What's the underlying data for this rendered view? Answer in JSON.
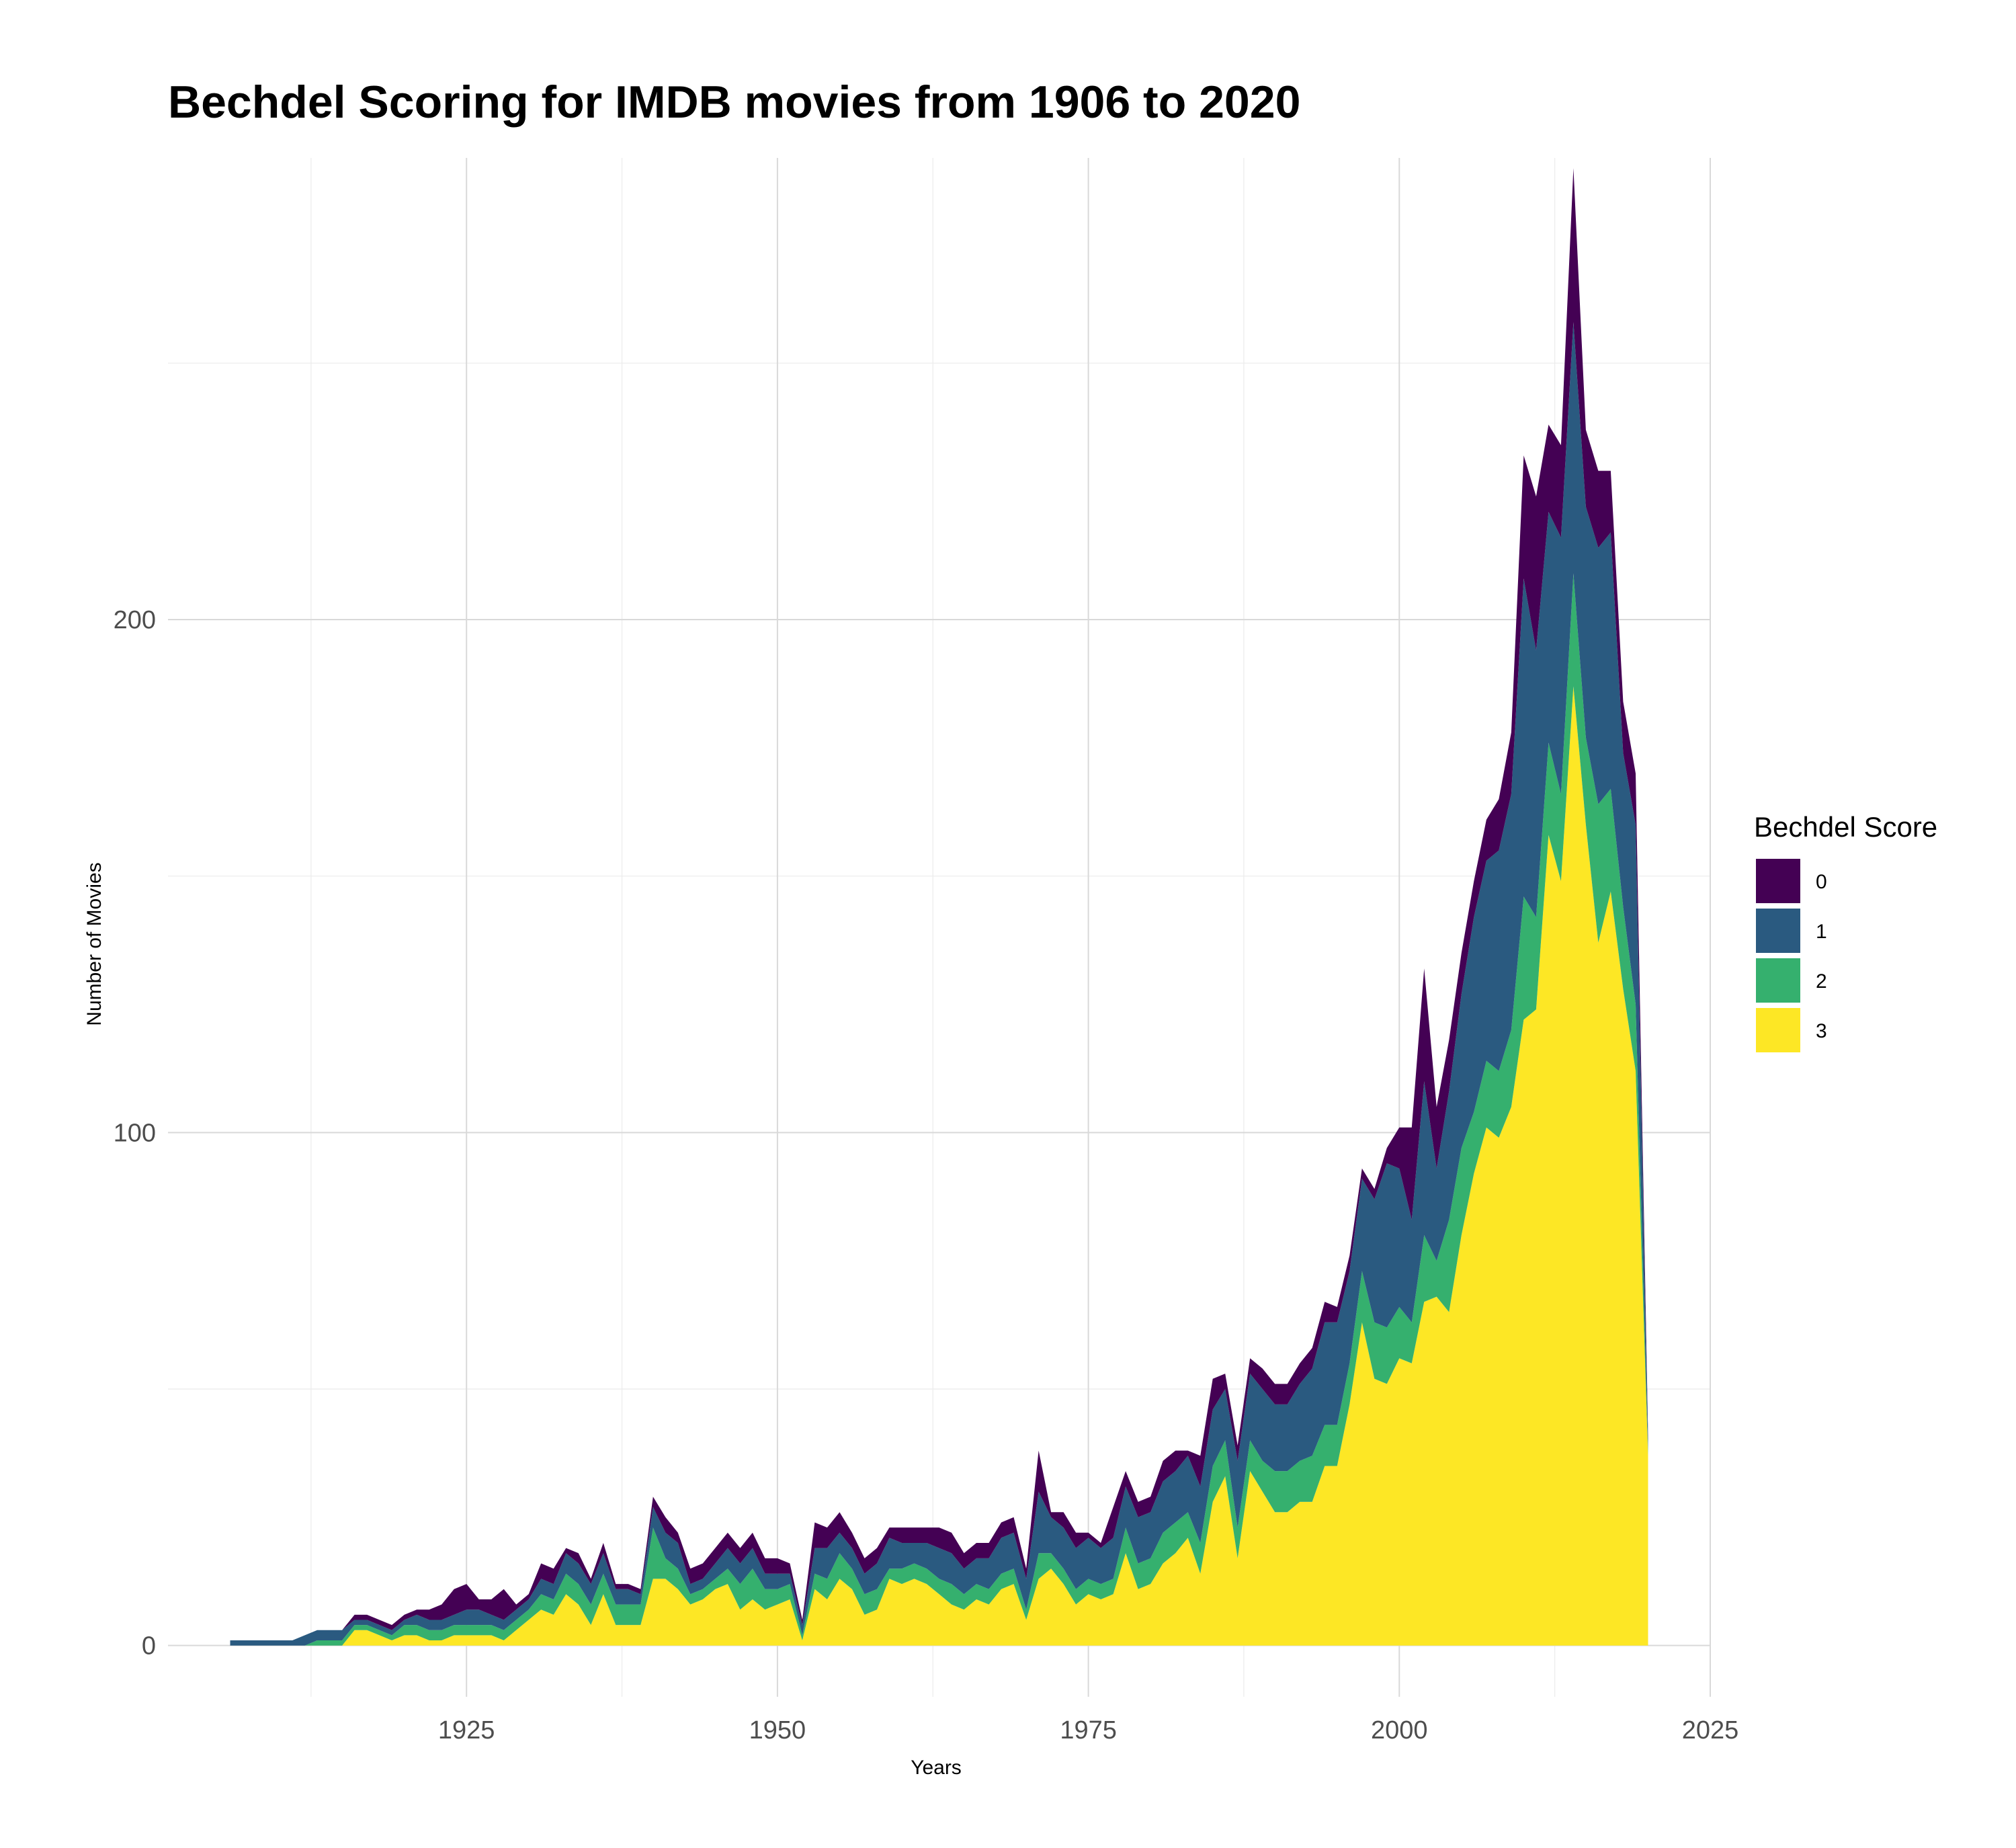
{
  "chart_data": {
    "type": "area",
    "stacked": true,
    "title": "Bechdel Scoring for IMDB movies from 1906 to 2020",
    "xlabel": "Years",
    "ylabel": "Number of Movies",
    "xlim": [
      1901,
      2025
    ],
    "ylim": [
      -10,
      290
    ],
    "x_ticks": [
      1925,
      1950,
      1975,
      2000,
      2025
    ],
    "y_ticks": [
      0,
      100,
      200
    ],
    "grid": true,
    "legend": {
      "title": "Bechdel Score",
      "placement": "right"
    },
    "x": [
      1906,
      1907,
      1908,
      1909,
      1910,
      1911,
      1912,
      1913,
      1914,
      1915,
      1916,
      1917,
      1918,
      1919,
      1920,
      1921,
      1922,
      1923,
      1924,
      1925,
      1926,
      1927,
      1928,
      1929,
      1930,
      1931,
      1932,
      1933,
      1934,
      1935,
      1936,
      1937,
      1938,
      1939,
      1940,
      1941,
      1942,
      1943,
      1944,
      1945,
      1946,
      1947,
      1948,
      1949,
      1950,
      1951,
      1952,
      1953,
      1954,
      1955,
      1956,
      1957,
      1958,
      1959,
      1960,
      1961,
      1962,
      1963,
      1964,
      1965,
      1966,
      1967,
      1968,
      1969,
      1970,
      1971,
      1972,
      1973,
      1974,
      1975,
      1976,
      1977,
      1978,
      1979,
      1980,
      1981,
      1982,
      1983,
      1984,
      1985,
      1986,
      1987,
      1988,
      1989,
      1990,
      1991,
      1992,
      1993,
      1994,
      1995,
      1996,
      1997,
      1998,
      1999,
      2000,
      2001,
      2002,
      2003,
      2004,
      2005,
      2006,
      2007,
      2008,
      2009,
      2010,
      2011,
      2012,
      2013,
      2014,
      2015,
      2016,
      2017,
      2018,
      2019,
      2020
    ],
    "series": [
      {
        "name": "0",
        "color": "#440154",
        "values": [
          0,
          0,
          0,
          0,
          0,
          0,
          0,
          0,
          0,
          0,
          1,
          1,
          1,
          1,
          1,
          1,
          2,
          3,
          5,
          5,
          2,
          3,
          6,
          1,
          1,
          3,
          3,
          1,
          2,
          1,
          2,
          1,
          1,
          1,
          2,
          3,
          2,
          3,
          3,
          3,
          3,
          3,
          3,
          3,
          3,
          2,
          1,
          5,
          4,
          4,
          3,
          3,
          3,
          2,
          3,
          3,
          3,
          4,
          4,
          3,
          3,
          3,
          3,
          3,
          2,
          8,
          1,
          3,
          3,
          1,
          1,
          6,
          3,
          3,
          3,
          4,
          4,
          1,
          6,
          6,
          3,
          3,
          3,
          4,
          4,
          4,
          4,
          4,
          4,
          3,
          3,
          2,
          2,
          3,
          8,
          18,
          22,
          12,
          10,
          8,
          7,
          8,
          10,
          12,
          24,
          30,
          17,
          18,
          30,
          15,
          15,
          12,
          10,
          10,
          1
        ]
      },
      {
        "name": "1",
        "color": "#2a5a80",
        "values": [
          1,
          1,
          1,
          1,
          1,
          1,
          2,
          2,
          2,
          2,
          1,
          1,
          1,
          1,
          1,
          2,
          2,
          2,
          2,
          3,
          3,
          2,
          2,
          2,
          2,
          3,
          3,
          4,
          4,
          4,
          4,
          3,
          3,
          2,
          4,
          5,
          5,
          2,
          2,
          3,
          4,
          4,
          4,
          3,
          3,
          2,
          2,
          5,
          6,
          4,
          4,
          4,
          5,
          6,
          5,
          4,
          5,
          6,
          6,
          5,
          5,
          6,
          7,
          7,
          6,
          12,
          7,
          8,
          8,
          8,
          7,
          8,
          8,
          9,
          9,
          10,
          10,
          11,
          11,
          11,
          10,
          13,
          13,
          14,
          13,
          13,
          15,
          17,
          20,
          20,
          18,
          18,
          24,
          32,
          27,
          20,
          30,
          18,
          25,
          30,
          38,
          39,
          43,
          46,
          62,
          52,
          45,
          50,
          49,
          45,
          50,
          50,
          30,
          35,
          2
        ]
      },
      {
        "name": "2",
        "color": "#35b06e",
        "values": [
          0,
          0,
          0,
          0,
          0,
          0,
          0,
          1,
          1,
          1,
          1,
          1,
          1,
          1,
          2,
          2,
          2,
          2,
          2,
          2,
          2,
          2,
          2,
          2,
          2,
          3,
          3,
          4,
          4,
          4,
          4,
          4,
          4,
          4,
          10,
          4,
          4,
          2,
          2,
          2,
          3,
          5,
          6,
          4,
          3,
          3,
          1,
          3,
          4,
          5,
          4,
          4,
          4,
          2,
          3,
          3,
          3,
          3,
          4,
          3,
          3,
          3,
          3,
          3,
          2,
          5,
          3,
          3,
          3,
          3,
          3,
          3,
          5,
          5,
          5,
          6,
          6,
          5,
          6,
          7,
          7,
          6,
          6,
          6,
          8,
          8,
          8,
          9,
          8,
          8,
          8,
          10,
          11,
          11,
          10,
          8,
          13,
          7,
          18,
          17,
          12,
          13,
          13,
          15,
          24,
          18,
          18,
          17,
          22,
          17,
          27,
          20,
          16,
          13,
          1
        ]
      },
      {
        "name": "3",
        "color": "#fde725",
        "values": [
          0,
          0,
          0,
          0,
          0,
          0,
          0,
          0,
          0,
          0,
          3,
          3,
          2,
          1,
          2,
          2,
          1,
          1,
          2,
          2,
          2,
          2,
          1,
          3,
          5,
          7,
          6,
          10,
          8,
          4,
          10,
          4,
          4,
          4,
          13,
          13,
          11,
          8,
          9,
          11,
          12,
          7,
          9,
          7,
          8,
          9,
          1,
          11,
          9,
          13,
          11,
          6,
          7,
          13,
          12,
          13,
          12,
          10,
          8,
          7,
          9,
          8,
          11,
          12,
          5,
          13,
          15,
          12,
          8,
          10,
          9,
          10,
          18,
          11,
          12,
          16,
          18,
          21,
          14,
          28,
          33,
          17,
          34,
          30,
          26,
          26,
          28,
          28,
          35,
          35,
          47,
          63,
          52,
          51,
          56,
          55,
          67,
          68,
          65,
          80,
          92,
          101,
          99,
          105,
          122,
          124,
          158,
          149,
          187,
          160,
          137,
          147,
          128,
          112,
          37
        ]
      }
    ]
  }
}
